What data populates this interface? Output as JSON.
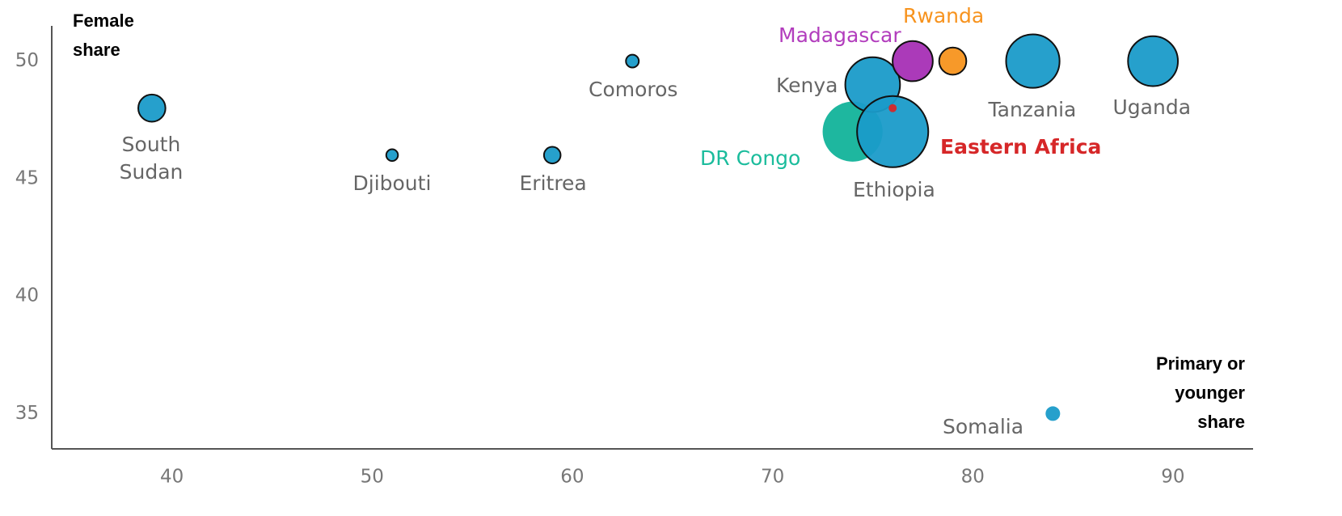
{
  "chart_data": {
    "type": "bubble",
    "x_label": "Primary or younger share",
    "y_label": "Female share",
    "xlim": [
      34,
      94
    ],
    "xticks": [
      40,
      50,
      60,
      70,
      80,
      90
    ],
    "ylim": [
      33.5,
      51.5
    ],
    "yticks": [
      35,
      40,
      45,
      50
    ],
    "grid": false,
    "points": [
      {
        "name": "South Sudan",
        "x": 39,
        "y": 48,
        "size": 16,
        "color": "#1a9bc9",
        "label_color": "#666666",
        "outline": true
      },
      {
        "name": "Djibouti",
        "x": 51,
        "y": 46,
        "size": 3,
        "color": "#1a9bc9",
        "label_color": "#666666",
        "outline": true
      },
      {
        "name": "Eritrea",
        "x": 59,
        "y": 46,
        "size": 6,
        "color": "#1a9bc9",
        "label_color": "#666666",
        "outline": true
      },
      {
        "name": "Comoros",
        "x": 63,
        "y": 50,
        "size": 3.6,
        "color": "#1a9bc9",
        "label_color": "#666666",
        "outline": true
      },
      {
        "name": "DR Congo",
        "x": 74,
        "y": 47,
        "size": 78,
        "color": "#12b39a",
        "label_color": "#1abc9c",
        "outline": false
      },
      {
        "name": "Kenya",
        "x": 75,
        "y": 49,
        "size": 65,
        "color": "#1a9bc9",
        "label_color": "#666666",
        "outline": true
      },
      {
        "name": "Madagascar",
        "x": 77,
        "y": 50,
        "size": 35,
        "color": "#a62fb5",
        "label_color": "#b23dbd",
        "outline": true
      },
      {
        "name": "Rwanda",
        "x": 79,
        "y": 50,
        "size": 16,
        "color": "#f7931e",
        "label_color": "#f7931e",
        "outline": true
      },
      {
        "name": "Tanzania",
        "x": 83,
        "y": 50,
        "size": 62,
        "color": "#1a9bc9",
        "label_color": "#666666",
        "outline": true
      },
      {
        "name": "Uganda",
        "x": 89,
        "y": 50,
        "size": 54,
        "color": "#1a9bc9",
        "label_color": "#666666",
        "outline": true
      },
      {
        "name": "Ethiopia",
        "x": 76,
        "y": 47,
        "size": 110,
        "color": "#1a9bc9",
        "label_color": "#666666",
        "outline": true
      },
      {
        "name": "Somalia",
        "x": 84,
        "y": 35,
        "size": 4.6,
        "color": "#1a9bc9",
        "label_color": "#666666",
        "outline": false
      },
      {
        "name": "Eastern Africa",
        "x": 76,
        "y": 48,
        "size": 1.4,
        "color": "#d62728",
        "label_color": "#d62728",
        "outline": false
      }
    ]
  }
}
